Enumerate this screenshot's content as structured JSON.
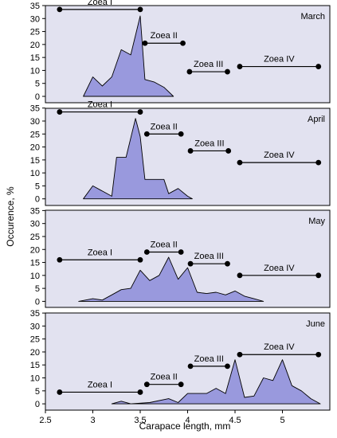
{
  "chart_data": {
    "type": "area",
    "xlabel": "Carapace length, mm",
    "ylabel": "Occurence, %",
    "xlim": [
      2.5,
      5.5
    ],
    "xticks": [
      2.5,
      3,
      3.5,
      4,
      4.5,
      5
    ],
    "ylim": [
      0,
      35
    ],
    "yticks": [
      0,
      5,
      10,
      15,
      20,
      25,
      30,
      35
    ],
    "grid": false,
    "colors": {
      "fill": "#9999dd",
      "stroke": "#000000",
      "panel_bg": "#e2e2f0",
      "figure_bg": "#ffffff"
    },
    "panels": [
      {
        "name": "March",
        "x": [
          2.9,
          3.0,
          3.1,
          3.2,
          3.3,
          3.4,
          3.5,
          3.55,
          3.65,
          3.75,
          3.85
        ],
        "y": [
          0,
          7.5,
          4,
          7.5,
          18,
          16,
          31,
          6.5,
          5.5,
          3.5,
          0
        ],
        "stages": [
          {
            "label": "Zoea I",
            "start": 2.65,
            "end": 3.5,
            "level": 33.5
          },
          {
            "label": "Zoea II",
            "start": 3.55,
            "end": 3.95,
            "level": 20.5
          },
          {
            "label": "Zoea III",
            "start": 4.02,
            "end": 4.42,
            "level": 9.5
          },
          {
            "label": "Zoea IV",
            "start": 4.55,
            "end": 5.38,
            "level": 11.5
          }
        ]
      },
      {
        "name": "April",
        "x": [
          2.9,
          3.0,
          3.1,
          3.2,
          3.25,
          3.35,
          3.45,
          3.5,
          3.55,
          3.65,
          3.75,
          3.8,
          3.9,
          4.0,
          4.05
        ],
        "y": [
          0,
          5,
          3,
          1,
          16,
          16,
          31,
          24,
          7.5,
          7.5,
          7.5,
          2,
          4,
          1,
          0
        ],
        "stages": [
          {
            "label": "Zoea I",
            "start": 2.65,
            "end": 3.5,
            "level": 33.5
          },
          {
            "label": "Zoea II",
            "start": 3.57,
            "end": 3.93,
            "level": 25
          },
          {
            "label": "Zoea III",
            "start": 4.03,
            "end": 4.43,
            "level": 18.5
          },
          {
            "label": "Zoea IV",
            "start": 4.55,
            "end": 5.38,
            "level": 14
          }
        ]
      },
      {
        "name": "May",
        "x": [
          2.85,
          3.0,
          3.1,
          3.2,
          3.3,
          3.4,
          3.5,
          3.6,
          3.7,
          3.8,
          3.9,
          4.0,
          4.1,
          4.2,
          4.3,
          4.4,
          4.5,
          4.6,
          4.7,
          4.8
        ],
        "y": [
          0,
          1,
          0.5,
          2.5,
          4.5,
          5,
          12,
          8,
          10,
          17,
          8.5,
          13,
          3.5,
          3,
          3.5,
          2.5,
          4,
          2,
          1,
          0
        ],
        "stages": [
          {
            "label": "Zoea I",
            "start": 2.65,
            "end": 3.5,
            "level": 16
          },
          {
            "label": "Zoea II",
            "start": 3.57,
            "end": 3.93,
            "level": 19
          },
          {
            "label": "Zoea III",
            "start": 4.03,
            "end": 4.42,
            "level": 14.5
          },
          {
            "label": "Zoea IV",
            "start": 4.55,
            "end": 5.38,
            "level": 10
          }
        ]
      },
      {
        "name": "June",
        "x": [
          3.2,
          3.3,
          3.4,
          3.6,
          3.8,
          3.9,
          4.0,
          4.1,
          4.2,
          4.3,
          4.4,
          4.5,
          4.6,
          4.7,
          4.8,
          4.9,
          5.0,
          5.1,
          5.2,
          5.3,
          5.4
        ],
        "y": [
          0,
          1,
          0,
          0.5,
          2,
          0.5,
          4,
          4,
          4,
          6,
          4,
          17,
          2.5,
          3,
          10,
          9,
          17,
          7,
          5,
          2,
          0
        ],
        "stages": [
          {
            "label": "Zoea I",
            "start": 2.65,
            "end": 3.5,
            "level": 4.5
          },
          {
            "label": "Zoea II",
            "start": 3.57,
            "end": 3.93,
            "level": 7.5
          },
          {
            "label": "Zoea III",
            "start": 4.03,
            "end": 4.42,
            "level": 14.5
          },
          {
            "label": "Zoea IV",
            "start": 4.55,
            "end": 5.38,
            "level": 19
          }
        ]
      }
    ]
  }
}
